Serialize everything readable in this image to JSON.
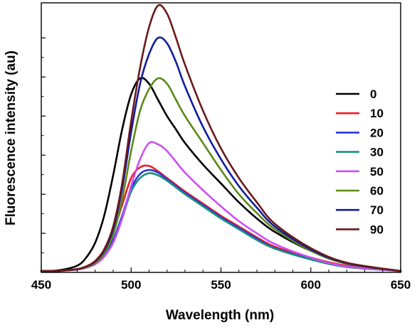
{
  "chart_data": {
    "type": "line",
    "title": "",
    "xlabel": "Wavelength (nm)",
    "ylabel": "Fluorescence intensity (au)",
    "xlim": [
      450,
      650
    ],
    "ylim": [
      0,
      1.0
    ],
    "x_ticks": [
      450,
      500,
      550,
      600,
      650
    ],
    "x_tick_labels": [
      "450",
      "500",
      "550",
      "600",
      "650"
    ],
    "y_tick_labels_shown": false,
    "grid": false,
    "legend_position": "right",
    "x": [
      450,
      460,
      470,
      475,
      480,
      485,
      490,
      495,
      500,
      505,
      510,
      515,
      520,
      525,
      530,
      540,
      550,
      560,
      570,
      580,
      600,
      620,
      650
    ],
    "series": [
      {
        "name": "0",
        "color": "#000000",
        "values": [
          0.005,
          0.008,
          0.025,
          0.055,
          0.11,
          0.21,
          0.36,
          0.53,
          0.66,
          0.72,
          0.7,
          0.64,
          0.58,
          0.53,
          0.48,
          0.4,
          0.33,
          0.26,
          0.2,
          0.15,
          0.08,
          0.035,
          0.005
        ]
      },
      {
        "name": "10",
        "color": "#ee1c25",
        "values": [
          0.005,
          0.006,
          0.012,
          0.022,
          0.042,
          0.08,
          0.15,
          0.25,
          0.35,
          0.39,
          0.395,
          0.375,
          0.35,
          0.325,
          0.3,
          0.255,
          0.21,
          0.17,
          0.13,
          0.095,
          0.055,
          0.025,
          0.005
        ]
      },
      {
        "name": "20",
        "color": "#2a35d8",
        "values": [
          0.005,
          0.006,
          0.012,
          0.02,
          0.036,
          0.065,
          0.12,
          0.21,
          0.31,
          0.365,
          0.38,
          0.37,
          0.345,
          0.32,
          0.295,
          0.25,
          0.205,
          0.165,
          0.125,
          0.09,
          0.05,
          0.022,
          0.005
        ]
      },
      {
        "name": "30",
        "color": "#1a9080",
        "values": [
          0.005,
          0.006,
          0.011,
          0.018,
          0.032,
          0.06,
          0.11,
          0.2,
          0.3,
          0.35,
          0.368,
          0.36,
          0.34,
          0.315,
          0.29,
          0.245,
          0.2,
          0.16,
          0.12,
          0.088,
          0.048,
          0.02,
          0.005
        ]
      },
      {
        "name": "50",
        "color": "#cc4ff5",
        "values": [
          0.005,
          0.006,
          0.01,
          0.017,
          0.03,
          0.058,
          0.11,
          0.2,
          0.32,
          0.42,
          0.48,
          0.475,
          0.45,
          0.41,
          0.37,
          0.305,
          0.245,
          0.19,
          0.145,
          0.105,
          0.055,
          0.022,
          0.005
        ]
      },
      {
        "name": "60",
        "color": "#5c8a17",
        "values": [
          0.005,
          0.006,
          0.011,
          0.019,
          0.035,
          0.07,
          0.14,
          0.27,
          0.45,
          0.6,
          0.68,
          0.72,
          0.7,
          0.64,
          0.58,
          0.48,
          0.38,
          0.29,
          0.22,
          0.16,
          0.08,
          0.032,
          0.005
        ]
      },
      {
        "name": "70",
        "color": "#121c9c",
        "values": [
          0.005,
          0.006,
          0.012,
          0.022,
          0.04,
          0.08,
          0.16,
          0.31,
          0.52,
          0.7,
          0.81,
          0.87,
          0.85,
          0.78,
          0.69,
          0.54,
          0.42,
          0.32,
          0.24,
          0.17,
          0.085,
          0.034,
          0.005
        ]
      },
      {
        "name": "90",
        "color": "#6b1a1a",
        "values": [
          0.005,
          0.006,
          0.012,
          0.022,
          0.042,
          0.085,
          0.17,
          0.33,
          0.56,
          0.76,
          0.91,
          0.99,
          0.96,
          0.87,
          0.77,
          0.6,
          0.46,
          0.35,
          0.26,
          0.18,
          0.09,
          0.036,
          0.005
        ]
      }
    ]
  }
}
